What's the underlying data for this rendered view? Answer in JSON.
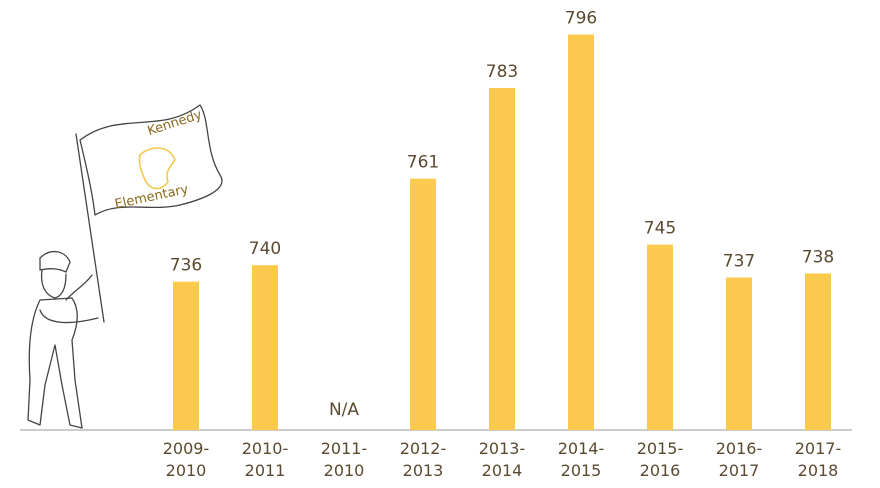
{
  "chart_data": {
    "type": "bar",
    "categories": [
      "2009-2010",
      "2010-2011",
      "2011-2010",
      "2012-2013",
      "2013-2014",
      "2014-2015",
      "2015-2016",
      "2016-2017",
      "2017-2018"
    ],
    "values": [
      736,
      740,
      null,
      761,
      783,
      796,
      745,
      737,
      738
    ],
    "value_labels": [
      null,
      null,
      "N/A",
      null,
      null,
      null,
      null,
      null,
      null
    ],
    "color": "#fcc94f",
    "ylim": [
      700,
      800
    ]
  },
  "illustration": {
    "flag_text_top": "Kennedy",
    "flag_text_bottom": "Elementary"
  }
}
